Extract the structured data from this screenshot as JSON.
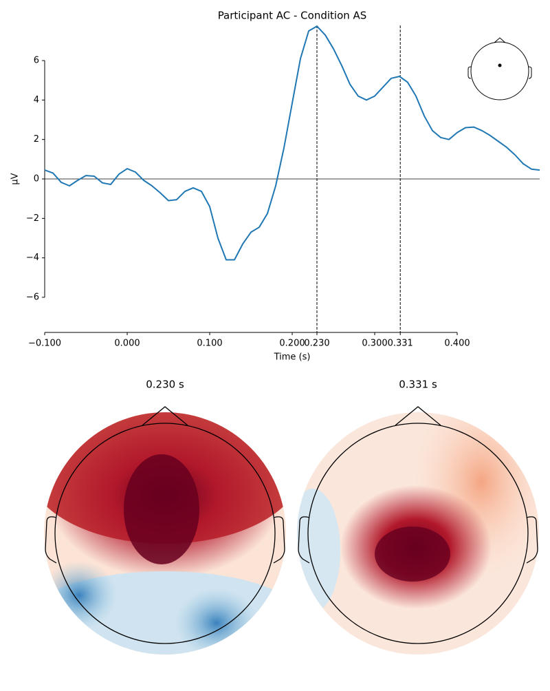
{
  "chart_data": {
    "type": "line",
    "title": "Participant AC - Condition AS",
    "xlabel": "Time (s)",
    "ylabel": "µV",
    "x": [
      -0.1,
      -0.09,
      -0.08,
      -0.07,
      -0.06,
      -0.05,
      -0.04,
      -0.03,
      -0.02,
      -0.01,
      0.0,
      0.01,
      0.02,
      0.03,
      0.04,
      0.05,
      0.06,
      0.07,
      0.08,
      0.09,
      0.1,
      0.11,
      0.12,
      0.13,
      0.14,
      0.15,
      0.16,
      0.17,
      0.18,
      0.19,
      0.2,
      0.21,
      0.22,
      0.23,
      0.24,
      0.25,
      0.26,
      0.27,
      0.28,
      0.29,
      0.3,
      0.31,
      0.32,
      0.33,
      0.34,
      0.35,
      0.36,
      0.37,
      0.38,
      0.39,
      0.4,
      0.41,
      0.42,
      0.43,
      0.44,
      0.45,
      0.46,
      0.47,
      0.48,
      0.49,
      0.5
    ],
    "values": [
      0.45,
      0.3,
      -0.17,
      -0.35,
      -0.07,
      0.17,
      0.14,
      -0.2,
      -0.28,
      0.24,
      0.52,
      0.35,
      -0.07,
      -0.35,
      -0.7,
      -1.1,
      -1.05,
      -0.63,
      -0.45,
      -0.63,
      -1.4,
      -3.0,
      -4.1,
      -4.1,
      -3.3,
      -2.7,
      -2.45,
      -1.75,
      -0.35,
      1.57,
      3.84,
      6.1,
      7.5,
      7.74,
      7.3,
      6.6,
      5.75,
      4.8,
      4.2,
      4.0,
      4.2,
      4.65,
      5.1,
      5.2,
      4.9,
      4.2,
      3.2,
      2.45,
      2.1,
      2.0,
      2.35,
      2.6,
      2.63,
      2.45,
      2.2,
      1.9,
      1.6,
      1.22,
      0.77,
      0.5,
      0.45
    ],
    "color": "#1f77b4",
    "xlim": [
      -0.1,
      0.5
    ],
    "ylim": [
      -7.78,
      7.78
    ],
    "xticks": [
      {
        "value": -0.1,
        "label": "−0.100"
      },
      {
        "value": 0.0,
        "label": "0.000"
      },
      {
        "value": 0.1,
        "label": "0.100"
      },
      {
        "value": 0.2,
        "label": "0.200"
      },
      {
        "value": 0.23,
        "label": "0.230"
      },
      {
        "value": 0.3,
        "label": "0.300"
      },
      {
        "value": 0.331,
        "label": "0.331"
      },
      {
        "value": 0.4,
        "label": "0.400"
      }
    ],
    "yticks": [
      {
        "value": -6,
        "label": "−6"
      },
      {
        "value": -4,
        "label": "−4"
      },
      {
        "value": -2,
        "label": "−2"
      },
      0,
      2,
      4,
      6
    ],
    "vlines": [
      0.23,
      0.331
    ],
    "topomap_titles": [
      "0.230 s",
      "0.331 s"
    ]
  }
}
